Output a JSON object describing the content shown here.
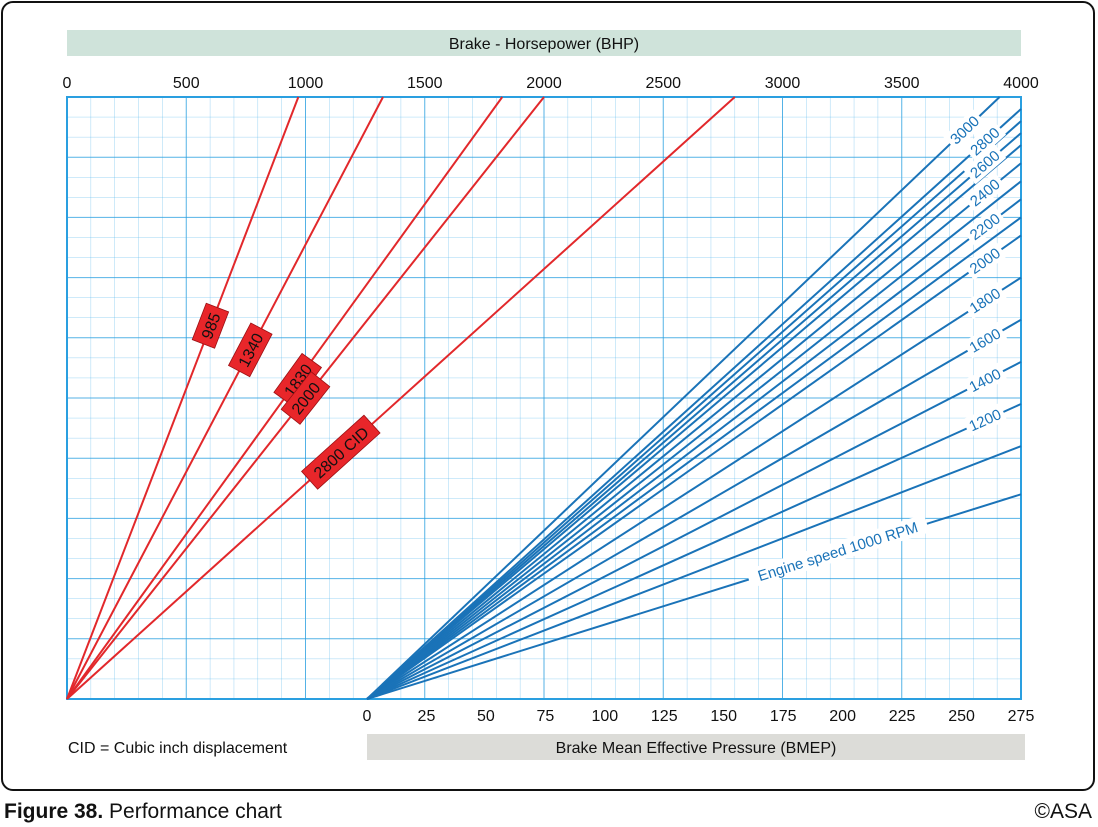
{
  "figure": {
    "label": "Figure 38.",
    "caption": "Performance chart",
    "copyright": "©ASA"
  },
  "colors": {
    "grid": "#4fb3ea",
    "grid_major": "#2a9fe0",
    "cid_lines": "#e2282b",
    "rpm_lines": "#1a73b8",
    "bhp_band": "#cfe3da",
    "bmep_band": "#dcdcd8",
    "label_fill": "#e8262a"
  },
  "chart_data": {
    "type": "line",
    "title": "Performance chart",
    "top_axis": {
      "label": "Brake - Horsepower (BHP)",
      "range": [
        0,
        4000
      ],
      "ticks": [
        0,
        500,
        1000,
        1500,
        2000,
        2500,
        3000,
        3500,
        4000
      ]
    },
    "bottom_axis": {
      "label": "Brake Mean Effective Pressure (BMEP)",
      "range": [
        0,
        275
      ],
      "ticks": [
        0,
        25,
        50,
        75,
        100,
        125,
        150,
        175,
        200,
        225,
        250,
        275
      ]
    },
    "vertical_axis": {
      "label": "",
      "ticks": []
    },
    "note": "CID = Cubic inch displacement",
    "cid_series": [
      {
        "name": "985",
        "label": "985",
        "bhp_at_top": 970
      },
      {
        "name": "1340",
        "label": "1340",
        "bhp_at_top": 1325
      },
      {
        "name": "1830",
        "label": "1830",
        "bhp_at_top": 1825
      },
      {
        "name": "2000",
        "label": "2000",
        "bhp_at_top": 2000
      },
      {
        "name": "2800",
        "label": "2800 CID",
        "bhp_at_top": 2800
      }
    ],
    "rpm_series": [
      {
        "name": "1000",
        "label": "Engine speed 1000 RPM",
        "labeled": true,
        "bmep_at_right": 275,
        "rel_height": 0.34
      },
      {
        "name": "1100",
        "label": "",
        "labeled": false,
        "bmep_at_right": 275,
        "rel_height": 0.42
      },
      {
        "name": "1200",
        "label": "1200",
        "labeled": true,
        "bmep_at_right": 275,
        "rel_height": 0.49
      },
      {
        "name": "1400",
        "label": "1400",
        "labeled": true,
        "bmep_at_right": 275,
        "rel_height": 0.56
      },
      {
        "name": "1600",
        "label": "1600",
        "labeled": true,
        "bmep_at_right": 275,
        "rel_height": 0.63
      },
      {
        "name": "1800",
        "label": "1800",
        "labeled": true,
        "bmep_at_right": 275,
        "rel_height": 0.7
      },
      {
        "name": "2000",
        "label": "2000",
        "labeled": true,
        "bmep_at_right": 275,
        "rel_height": 0.77
      },
      {
        "name": "2100",
        "label": "",
        "labeled": false,
        "bmep_at_right": 275,
        "rel_height": 0.8
      },
      {
        "name": "2200",
        "label": "2200",
        "labeled": true,
        "bmep_at_right": 275,
        "rel_height": 0.83
      },
      {
        "name": "2300",
        "label": "",
        "labeled": false,
        "bmep_at_right": 275,
        "rel_height": 0.86
      },
      {
        "name": "2400",
        "label": "2400",
        "labeled": true,
        "bmep_at_right": 275,
        "rel_height": 0.89
      },
      {
        "name": "2500",
        "label": "",
        "labeled": false,
        "bmep_at_right": 275,
        "rel_height": 0.92
      },
      {
        "name": "2600",
        "label": "2600",
        "labeled": true,
        "bmep_at_right": 275,
        "rel_height": 0.94
      },
      {
        "name": "2700",
        "label": "",
        "labeled": false,
        "bmep_at_right": 275,
        "rel_height": 0.96
      },
      {
        "name": "2800",
        "label": "2800",
        "labeled": true,
        "bmep_at_right": 275,
        "rel_height": 0.98
      },
      {
        "name": "3000",
        "label": "3000",
        "labeled": true,
        "bmep_at_right": 266,
        "rel_height": 1.0
      }
    ],
    "grid": true
  }
}
